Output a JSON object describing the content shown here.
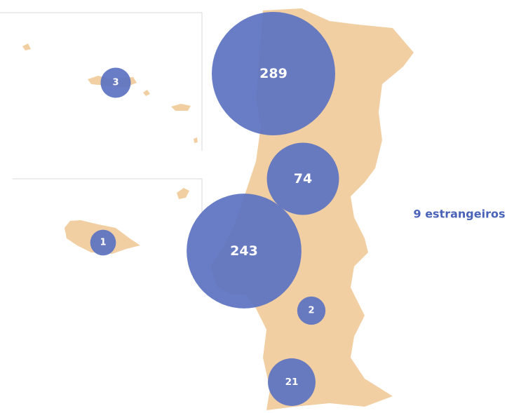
{
  "map": {
    "bubbles": [
      {
        "value": 289
      },
      {
        "value": 74
      },
      {
        "value": 243
      },
      {
        "value": 2
      },
      {
        "value": 21
      },
      {
        "value": 3
      },
      {
        "value": 1
      }
    ],
    "note": "9 estrangeiros"
  }
}
